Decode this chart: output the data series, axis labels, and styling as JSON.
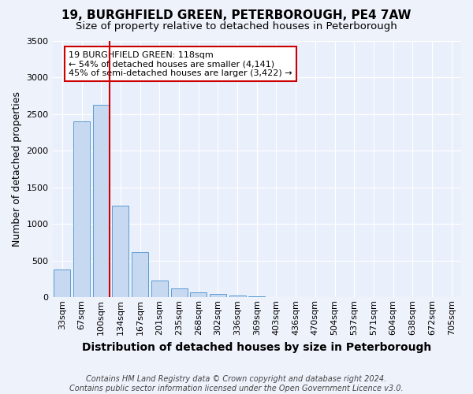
{
  "title": "19, BURGHFIELD GREEN, PETERBOROUGH, PE4 7AW",
  "subtitle": "Size of property relative to detached houses in Peterborough",
  "xlabel": "Distribution of detached houses by size in Peterborough",
  "ylabel": "Number of detached properties",
  "footnote1": "Contains HM Land Registry data © Crown copyright and database right 2024.",
  "footnote2": "Contains public sector information licensed under the Open Government Licence v3.0.",
  "annotation_line1": "19 BURGHFIELD GREEN: 118sqm",
  "annotation_line2": "← 54% of detached houses are smaller (4,141)",
  "annotation_line3": "45% of semi-detached houses are larger (3,422) →",
  "bar_color": "#c6d9f1",
  "bar_edge_color": "#5b9bd5",
  "ref_line_color": "#cc0000",
  "categories": [
    "33sqm",
    "67sqm",
    "100sqm",
    "134sqm",
    "167sqm",
    "201sqm",
    "235sqm",
    "268sqm",
    "302sqm",
    "336sqm",
    "369sqm",
    "403sqm",
    "436sqm",
    "470sqm",
    "504sqm",
    "537sqm",
    "571sqm",
    "604sqm",
    "638sqm",
    "672sqm",
    "705sqm"
  ],
  "values": [
    380,
    2400,
    2620,
    1250,
    620,
    230,
    120,
    70,
    50,
    30,
    12,
    5,
    2,
    1,
    1,
    0,
    0,
    0,
    0,
    0,
    0
  ],
  "ref_bar_index": 2,
  "ylim": [
    0,
    3500
  ],
  "yticks": [
    0,
    500,
    1000,
    1500,
    2000,
    2500,
    3000,
    3500
  ],
  "background_color": "#eef2fb",
  "plot_bg_color": "#eaf0fb",
  "grid_color": "#ffffff",
  "title_fontsize": 11,
  "subtitle_fontsize": 9.5,
  "ylabel_fontsize": 9,
  "xlabel_fontsize": 10,
  "tick_fontsize": 8,
  "annotation_fontsize": 8,
  "annotation_box_color": "#ffffff",
  "annotation_box_edge": "#cc0000",
  "footnote_fontsize": 7
}
